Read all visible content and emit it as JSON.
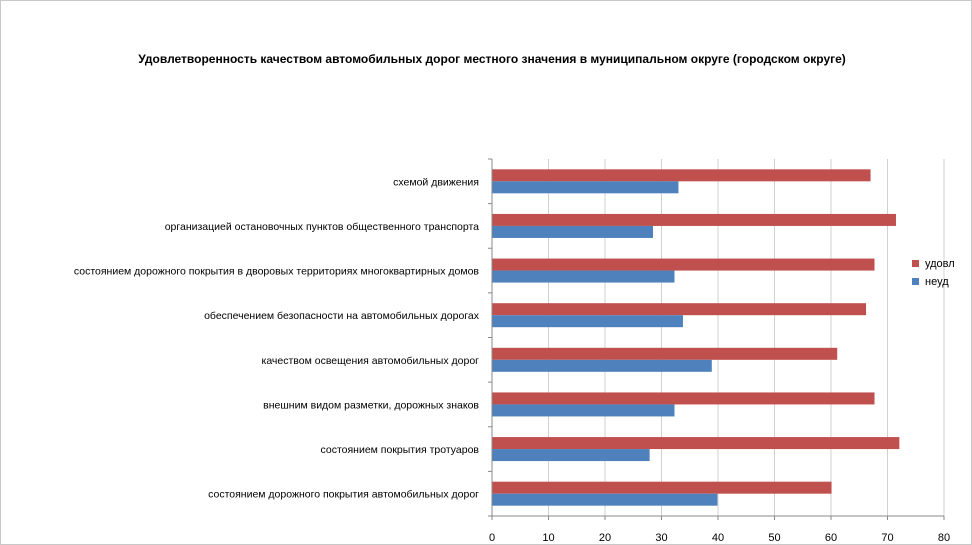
{
  "chart_data": {
    "type": "bar",
    "orientation": "horizontal",
    "title": "Удовлетворенность качеством автомобильных дорог местного значения в муниципальном округе (городском округе)",
    "categories": [
      "схемой движения",
      "организацией остановочных пунктов общественного транспорта",
      "состоянием дорожного покрытия в дворовых территориях многоквартирных домов",
      "обеспечением безопасности на автомобильных дорогах",
      "качеством освещения автомобильных дорог",
      "внешним видом разметки, дорожных знаков",
      "состоянием покрытия тротуаров",
      "состоянием дорожного покрытия автомобильных дорог"
    ],
    "series": [
      {
        "name": "удовл",
        "color": "#C0504D",
        "values": [
          67,
          71.5,
          67.7,
          66.2,
          61.1,
          67.7,
          72.1,
          60.1
        ]
      },
      {
        "name": "неуд",
        "color": "#4F81BD",
        "values": [
          33,
          28.5,
          32.3,
          33.8,
          38.9,
          32.3,
          27.9,
          39.9
        ]
      }
    ],
    "xlim": [
      0,
      80
    ],
    "xticks": [
      "0",
      "10",
      "20",
      "30",
      "40",
      "50",
      "60",
      "70",
      "80"
    ],
    "xlabel": "",
    "ylabel": "",
    "grid": true,
    "legend_position": "right"
  }
}
